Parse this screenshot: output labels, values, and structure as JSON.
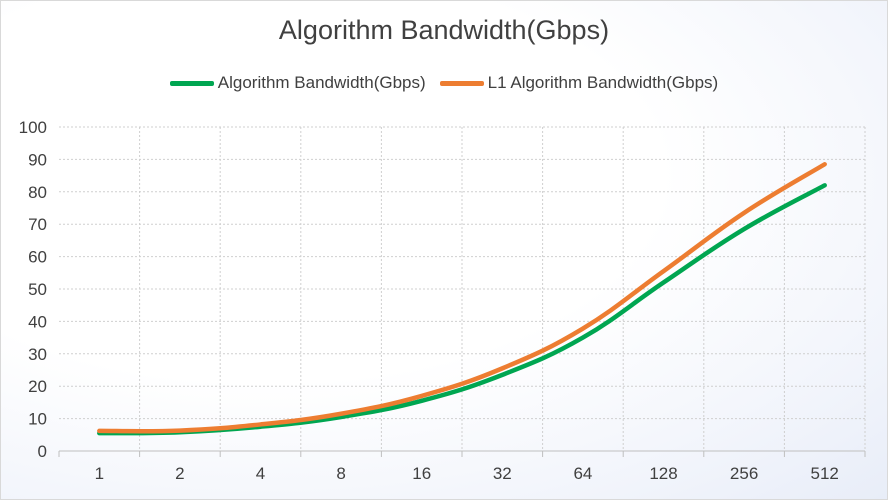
{
  "chart_data": {
    "type": "line",
    "title": "Algorithm Bandwidth(Gbps)",
    "xlabel": "",
    "ylabel": "",
    "categories": [
      "1",
      "2",
      "4",
      "8",
      "16",
      "32",
      "64",
      "128",
      "256",
      "512"
    ],
    "ylim": [
      0,
      100
    ],
    "yticks": [
      0,
      10,
      20,
      30,
      40,
      50,
      60,
      70,
      80,
      90,
      100
    ],
    "grid": true,
    "legend_position": "top",
    "series": [
      {
        "name": "Algorithm Bandwidth(Gbps)",
        "color": "#00a651",
        "values": [
          5.5,
          5.8,
          7.5,
          10.5,
          15.5,
          23.5,
          35,
          52,
          68.5,
          82
        ]
      },
      {
        "name": "L1 Algorithm Bandwidth(Gbps)",
        "color": "#ed7d31",
        "values": [
          6.2,
          6.3,
          8.2,
          11.5,
          17,
          25.5,
          37.8,
          55.5,
          73.5,
          88.5
        ]
      }
    ]
  }
}
